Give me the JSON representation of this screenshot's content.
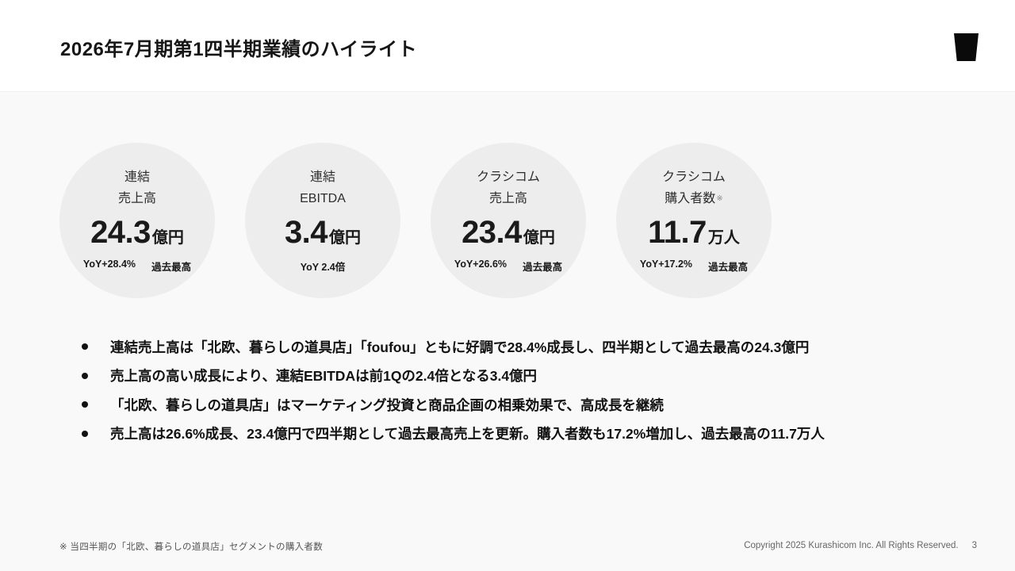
{
  "colors": {
    "page_background": "#f9f9f9",
    "header_background": "#ffffff",
    "circle_fill": "#ededed",
    "text_primary": "#111111",
    "text_muted": "#666666",
    "logo_fill": "#0a0a0a"
  },
  "header": {
    "title": "2026年7月期第1四半期業績のハイライト",
    "logo": "kurashicom-logo"
  },
  "kpis": [
    {
      "label_line1": "連結",
      "label_line2": "売上高",
      "value": "24.3",
      "unit": "億円",
      "yoy": "YoY+28.4%",
      "badge": "過去最高"
    },
    {
      "label_line1": "連結",
      "label_line2": "EBITDA",
      "value": "3.4",
      "unit": "億円",
      "yoy": "YoY 2.4倍"
    },
    {
      "label_line1": "クラシコム",
      "label_line2": "売上高",
      "value": "23.4",
      "unit": "億円",
      "yoy": "YoY+26.6%",
      "badge": "過去最高"
    },
    {
      "label_line1": "クラシコム",
      "label_line2": "購入者数",
      "label_note": "※",
      "value": "11.7",
      "unit": "万人",
      "yoy": "YoY+17.2%",
      "badge": "過去最高"
    }
  ],
  "bullets": [
    "連結売上高は「北欧、暮らしの道具店」「foufou」ともに好調で28.4%成長し、四半期として過去最高の24.3億円",
    "売上高の高い成長により、連結EBITDAは前1Qの2.4倍となる3.4億円",
    "「北欧、暮らしの道具店」はマーケティング投資と商品企画の相乗効果で、高成長を継続",
    "売上高は26.6%成長、23.4億円で四半期として過去最高売上を更新。購入者数も17.2%増加し、過去最高の11.7万人"
  ],
  "footer": {
    "footnote": "※ 当四半期の「北欧、暮らしの道具店」セグメントの購入者数",
    "copyright": "Copyright 2025 Kurashicom Inc. All Rights Reserved.",
    "page_number": "3"
  }
}
